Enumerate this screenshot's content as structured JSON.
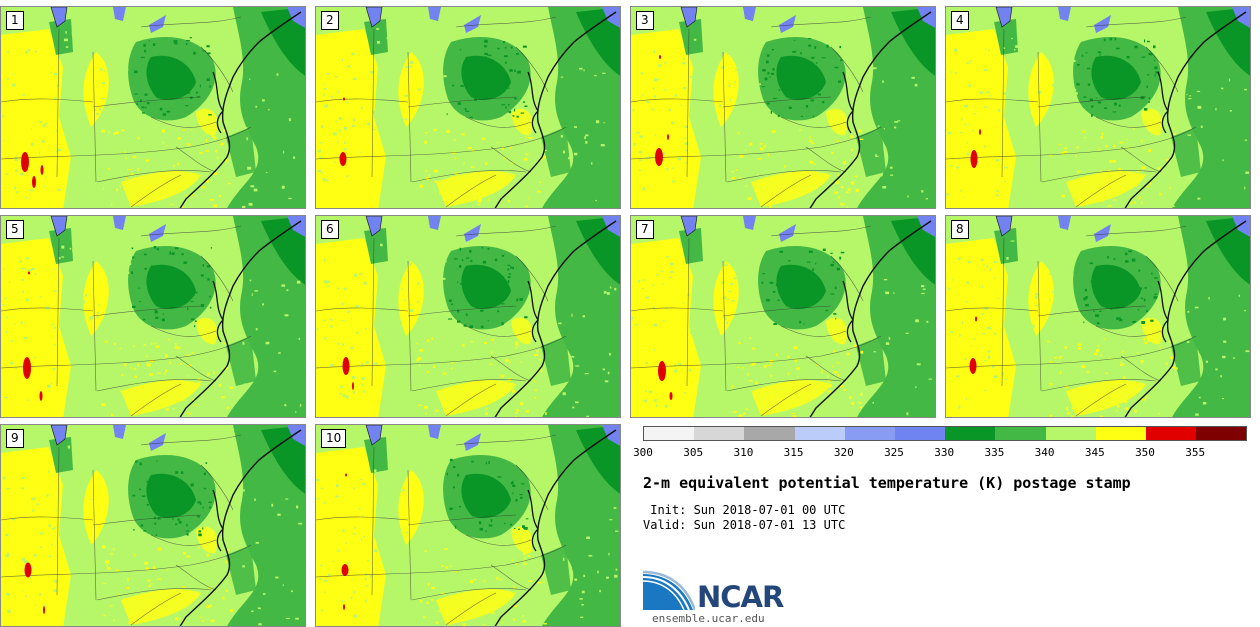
{
  "panels": [
    {
      "label": "1",
      "hot": [
        [
          24,
          155,
          8,
          20
        ],
        [
          33,
          175,
          4,
          12
        ],
        [
          41,
          163,
          3,
          10
        ]
      ]
    },
    {
      "label": "2",
      "hot": [
        [
          27,
          152,
          7,
          14
        ],
        [
          28,
          92,
          2,
          3
        ]
      ]
    },
    {
      "label": "3",
      "hot": [
        [
          28,
          150,
          8,
          18
        ],
        [
          29,
          50,
          2,
          4
        ],
        [
          37,
          130,
          2,
          6
        ]
      ]
    },
    {
      "label": "4",
      "hot": [
        [
          28,
          152,
          7,
          18
        ],
        [
          34,
          125,
          2,
          6
        ]
      ]
    },
    {
      "label": "5",
      "hot": [
        [
          26,
          152,
          8,
          22
        ],
        [
          40,
          180,
          3,
          10
        ],
        [
          28,
          57,
          2,
          3
        ]
      ]
    },
    {
      "label": "6",
      "hot": [
        [
          30,
          150,
          7,
          18
        ],
        [
          37,
          170,
          2,
          8
        ]
      ]
    },
    {
      "label": "7",
      "hot": [
        [
          31,
          155,
          8,
          20
        ],
        [
          40,
          180,
          3,
          8
        ]
      ]
    },
    {
      "label": "8",
      "hot": [
        [
          27,
          150,
          7,
          16
        ],
        [
          30,
          103,
          2,
          5
        ]
      ]
    },
    {
      "label": "9",
      "hot": [
        [
          27,
          145,
          7,
          15
        ],
        [
          43,
          185,
          2,
          8
        ]
      ]
    },
    {
      "label": "10",
      "hot": [
        [
          29,
          145,
          7,
          12
        ],
        [
          30,
          50,
          2,
          3
        ],
        [
          28,
          182,
          2,
          6
        ]
      ]
    }
  ],
  "colorbar": {
    "ticks": [
      "300",
      "305",
      "310",
      "315",
      "320",
      "325",
      "330",
      "335",
      "340",
      "345",
      "350",
      "355"
    ],
    "colors": [
      "#f4f4f4",
      "#d7d7d7",
      "#a8a8a8",
      "#bcccfa",
      "#889cf4",
      "#6f84f0",
      "#0a9626",
      "#44b844",
      "#b6f76a",
      "#ffff14",
      "#e10000",
      "#7f0000"
    ]
  },
  "colors": {
    "yellow": "#ffff14",
    "lightgreen": "#b6f76a",
    "green": "#44b844",
    "darkgreen": "#0a9626",
    "blue": "#7282f0",
    "red": "#e10000"
  },
  "title": "2-m equivalent potential temperature (K) postage stamp",
  "init_line": " Init: Sun 2018-07-01 00 UTC",
  "valid_line": "Valid: Sun 2018-07-01 13 UTC",
  "logo_text": "NCAR",
  "website": "ensemble.ucar.edu"
}
